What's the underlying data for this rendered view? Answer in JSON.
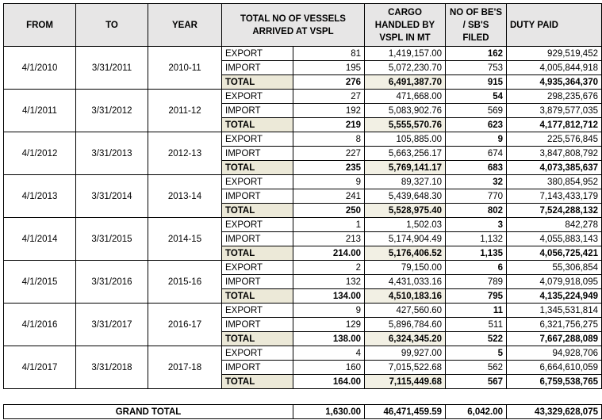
{
  "header": {
    "from": "FROM",
    "to": "TO",
    "year": "YEAR",
    "vessels": "TOTAL NO OF VESSELS ARRIVED AT VSPL",
    "cargo": "CARGO HANDLED BY VSPL IN MT",
    "bes": "NO OF BE'S / SB'S FILED",
    "duty": "DUTY PAID"
  },
  "periods": [
    {
      "from": "4/1/2010",
      "to": "3/31/2011",
      "year": "2010-11",
      "export": {
        "label": "EXPORT",
        "vessels": "81",
        "cargo": "1,419,157.00",
        "bes": "162",
        "duty": "929,519,452"
      },
      "import": {
        "label": "IMPORT",
        "vessels": "195",
        "cargo": "5,072,230.70",
        "bes": "753",
        "duty": "4,005,844,918"
      },
      "total": {
        "label": "TOTAL",
        "vessels": "276",
        "cargo": "6,491,387.70",
        "bes": "915",
        "duty": "4,935,364,370"
      }
    },
    {
      "from": "4/1/2011",
      "to": "3/31/2012",
      "year": "2011-12",
      "export": {
        "label": "EXPORT",
        "vessels": "27",
        "cargo": "471,668.00",
        "bes": "54",
        "duty": "298,235,676"
      },
      "import": {
        "label": "IMPORT",
        "vessels": "192",
        "cargo": "5,083,902.76",
        "bes": "569",
        "duty": "3,879,577,035"
      },
      "total": {
        "label": "TOTAL",
        "vessels": "219",
        "cargo": "5,555,570.76",
        "bes": "623",
        "duty": "4,177,812,712"
      }
    },
    {
      "from": "4/1/2012",
      "to": "3/31/2013",
      "year": "2012-13",
      "export": {
        "label": "EXPORT",
        "vessels": "8",
        "cargo": "105,885.00",
        "bes": "9",
        "duty": "225,576,845"
      },
      "import": {
        "label": "IMPORT",
        "vessels": "227",
        "cargo": "5,663,256.17",
        "bes": "674",
        "duty": "3,847,808,792"
      },
      "total": {
        "label": "TOTAL",
        "vessels": "235",
        "cargo": "5,769,141.17",
        "bes": "683",
        "duty": "4,073,385,637"
      }
    },
    {
      "from": "4/1/2013",
      "to": "3/31/2014",
      "year": "2013-14",
      "export": {
        "label": "EXPORT",
        "vessels": "9",
        "cargo": "89,327.10",
        "bes": "32",
        "duty": "380,854,952"
      },
      "import": {
        "label": "IMPORT",
        "vessels": "241",
        "cargo": "5,439,648.30",
        "bes": "770",
        "duty": "7,143,433,179"
      },
      "total": {
        "label": "TOTAL",
        "vessels": "250",
        "cargo": "5,528,975.40",
        "bes": "802",
        "duty": "7,524,288,132"
      }
    },
    {
      "from": "4/1/2014",
      "to": "3/31/2015",
      "year": "2014-15",
      "export": {
        "label": "EXPORT",
        "vessels": "1",
        "cargo": "1,502.03",
        "bes": "3",
        "duty": "842,278"
      },
      "import": {
        "label": "IMPORT",
        "vessels": "213",
        "cargo": "5,174,904.49",
        "bes": "1,132",
        "duty": "4,055,883,143"
      },
      "total": {
        "label": "TOTAL",
        "vessels": "214.00",
        "cargo": "5,176,406.52",
        "bes": "1,135",
        "duty": "4,056,725,421"
      }
    },
    {
      "from": "4/1/2015",
      "to": "3/31/2016",
      "year": "2015-16",
      "export": {
        "label": "EXPORT",
        "vessels": "2",
        "cargo": "79,150.00",
        "bes": "6",
        "duty": "55,306,854"
      },
      "import": {
        "label": "IMPORT",
        "vessels": "132",
        "cargo": "4,431,033.16",
        "bes": "789",
        "duty": "4,079,918,095"
      },
      "total": {
        "label": "TOTAL",
        "vessels": "134.00",
        "cargo": "4,510,183.16",
        "bes": "795",
        "duty": "4,135,224,949"
      }
    },
    {
      "from": "4/1/2016",
      "to": "3/31/2017",
      "year": "2016-17",
      "export": {
        "label": "EXPORT",
        "vessels": "9",
        "cargo": "427,560.60",
        "bes": "11",
        "duty": "1,345,531,814"
      },
      "import": {
        "label": "IMPORT",
        "vessels": "129",
        "cargo": "5,896,784.60",
        "bes": "511",
        "duty": "6,321,756,275"
      },
      "total": {
        "label": "TOTAL",
        "vessels": "138.00",
        "cargo": "6,324,345.20",
        "bes": "522",
        "duty": "7,667,288,089"
      }
    },
    {
      "from": "4/1/2017",
      "to": "3/31/2018",
      "year": "2017-18",
      "export": {
        "label": "EXPORT",
        "vessels": "4",
        "cargo": "99,927.00",
        "bes": "5",
        "duty": "94,928,706"
      },
      "import": {
        "label": "IMPORT",
        "vessels": "160",
        "cargo": "7,015,522.68",
        "bes": "562",
        "duty": "6,664,610,059"
      },
      "total": {
        "label": "TOTAL",
        "vessels": "164.00",
        "cargo": "7,115,449.68",
        "bes": "567",
        "duty": "6,759,538,765"
      }
    }
  ],
  "grand_total": {
    "label": "GRAND TOTAL",
    "vessels": "1,630.00",
    "cargo": "46,471,459.59",
    "bes": "6,042.00",
    "duty": "43,329,628,075"
  },
  "colors": {
    "header_bg": "#e7e6e6",
    "total_bg": "#ece9d8"
  }
}
